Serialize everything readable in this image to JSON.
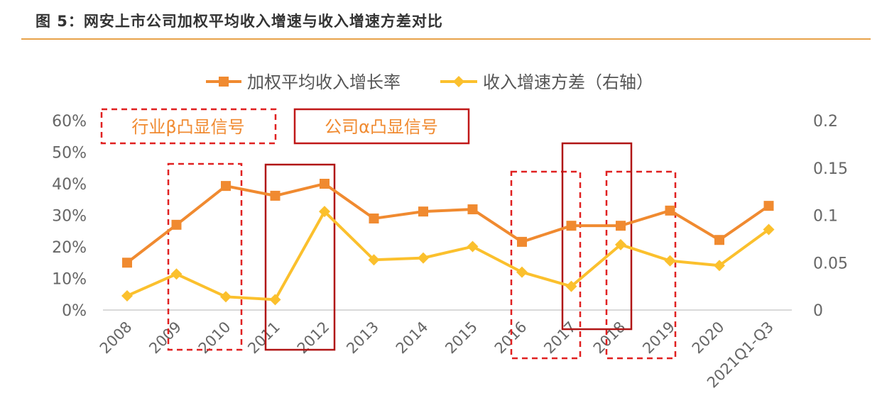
{
  "title": "图 5：网安上市公司加权平均收入增速与收入增速方差对比",
  "colors": {
    "series1": "#f08a30",
    "series2": "#fbc02d",
    "annotation": "#e02020",
    "accent_rule": "#e8a24a"
  },
  "chart_data": {
    "type": "line",
    "categories": [
      "2008",
      "2009",
      "2010",
      "2011",
      "2012",
      "2013",
      "2014",
      "2015",
      "2016",
      "2017",
      "2018",
      "2019",
      "2020",
      "2021Q1-Q3"
    ],
    "series": [
      {
        "name": "加权平均收入增长率",
        "axis": "left",
        "marker": "square",
        "values": [
          15.0,
          27.0,
          39.3,
          36.2,
          40.0,
          29.0,
          31.2,
          31.9,
          21.6,
          26.7,
          26.7,
          31.5,
          22.2,
          33.0
        ]
      },
      {
        "name": "收入增速方差（右轴）",
        "axis": "right",
        "marker": "diamond",
        "values": [
          0.015,
          0.038,
          0.014,
          0.011,
          0.104,
          0.053,
          0.055,
          0.067,
          0.04,
          0.025,
          0.069,
          0.052,
          0.047,
          0.085
        ]
      }
    ],
    "y_left": {
      "range": [
        0,
        60
      ],
      "ticks": [
        "0%",
        "10%",
        "20%",
        "30%",
        "40%",
        "50%",
        "60%"
      ]
    },
    "y_right": {
      "range": [
        0,
        0.2
      ],
      "ticks": [
        "0",
        "0.05",
        "0.1",
        "0.15",
        "0.2"
      ]
    },
    "legend_position": "top",
    "grid": false,
    "annotations": [
      {
        "label": "行业β凸显信号",
        "style": "dashed",
        "spans": [
          [
            "2009",
            "2010"
          ],
          [
            "2016",
            "2017"
          ],
          [
            "2018",
            "2019"
          ]
        ]
      },
      {
        "label": "公司α凸显信号",
        "style": "solid",
        "spans": [
          [
            "2011",
            "2012"
          ],
          [
            "2017",
            "2018"
          ]
        ]
      }
    ]
  }
}
